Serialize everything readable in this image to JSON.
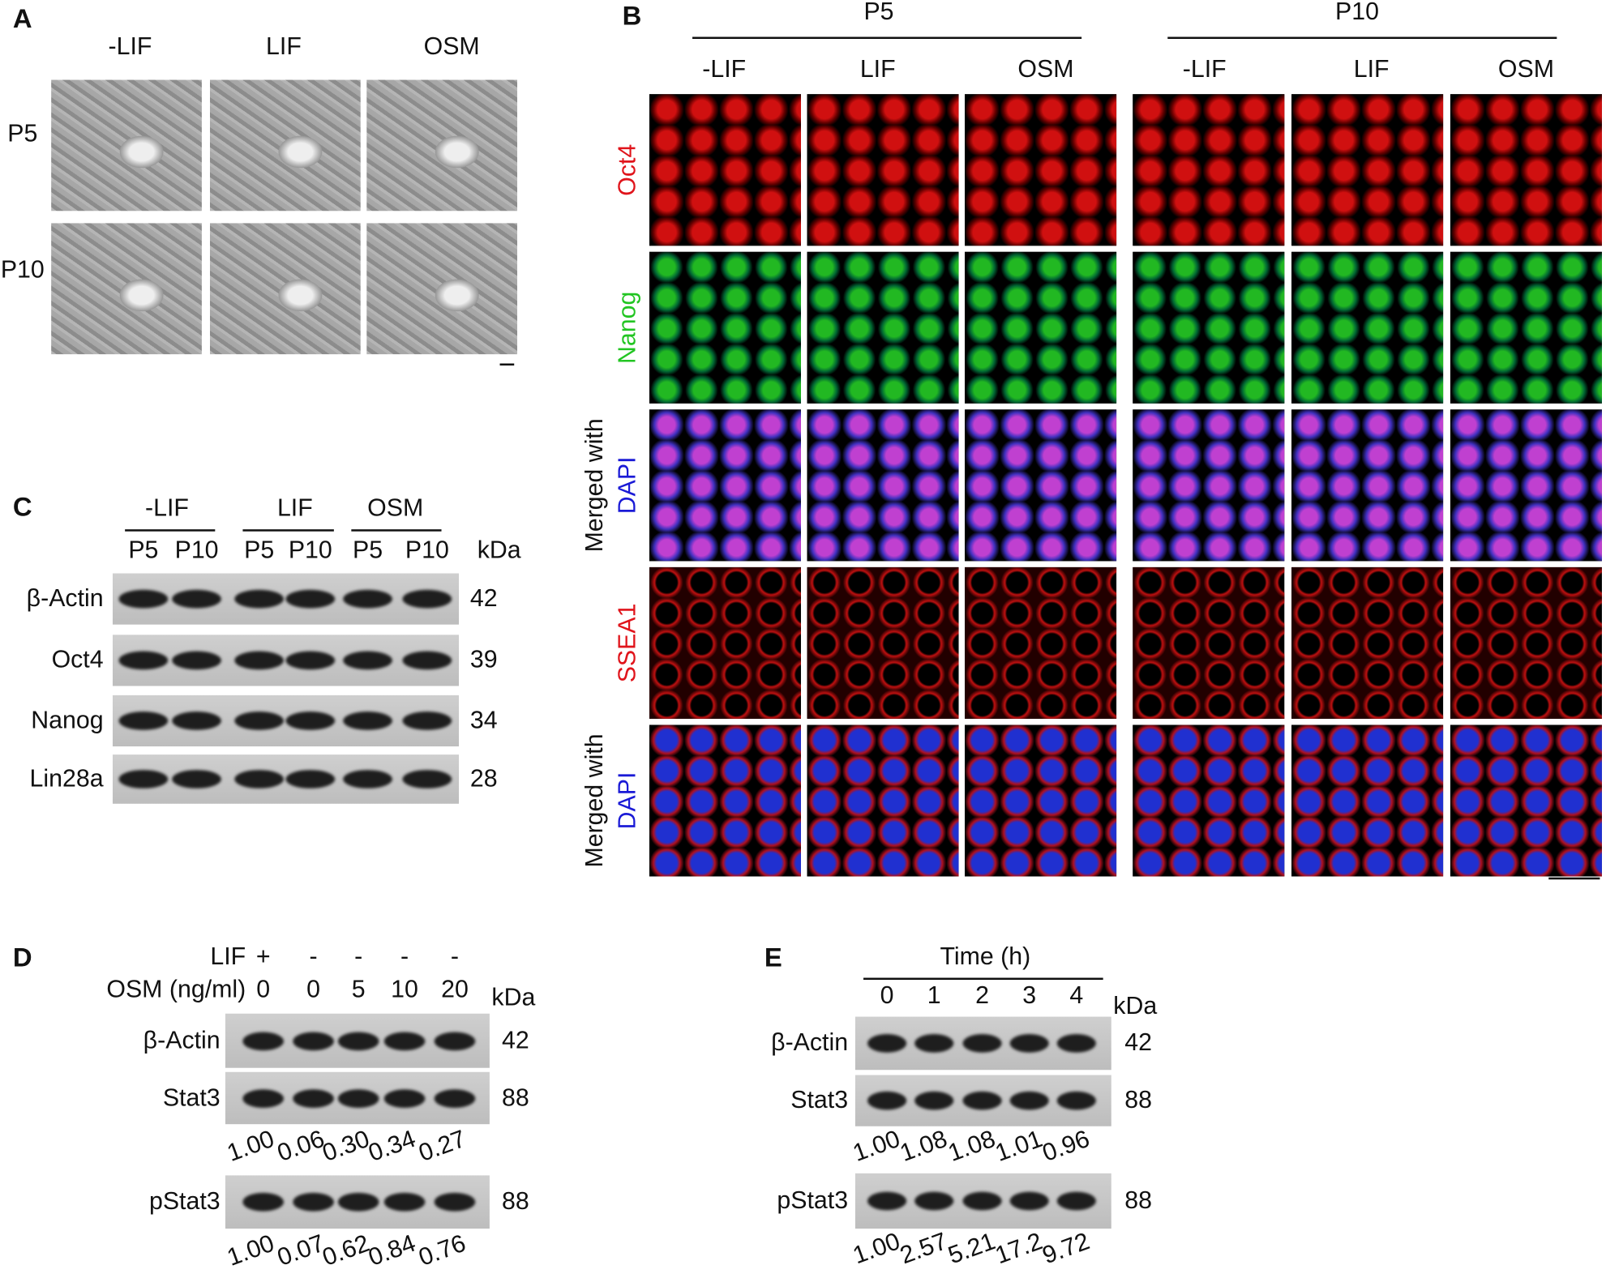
{
  "panel_a": {
    "label": "A",
    "columns": [
      "-LIF",
      "LIF",
      "OSM"
    ],
    "rows": [
      "P5",
      "P10"
    ]
  },
  "panel_b": {
    "label": "B",
    "groups": [
      {
        "title": "P5",
        "columns": [
          "-LIF",
          "LIF",
          "OSM"
        ]
      },
      {
        "title": "P10",
        "columns": [
          "-LIF",
          "LIF",
          "OSM"
        ]
      }
    ],
    "rows": [
      {
        "lines": [
          {
            "text": "Oct4",
            "color": "#e0141b"
          }
        ]
      },
      {
        "lines": [
          {
            "text": "Nanog",
            "color": "#22c522"
          }
        ]
      },
      {
        "lines": [
          {
            "text": "Merged with",
            "color": "#111111"
          },
          {
            "text": "DAPI",
            "color": "#1a1ad6"
          }
        ]
      },
      {
        "lines": [
          {
            "text": "SSEA1",
            "color": "#e0141b"
          }
        ]
      },
      {
        "lines": [
          {
            "text": "Merged with",
            "color": "#111111"
          },
          {
            "text": "DAPI",
            "color": "#1a1ad6"
          }
        ]
      }
    ]
  },
  "panel_c": {
    "label": "C",
    "groups": [
      "-LIF",
      "LIF",
      "OSM"
    ],
    "lanes": [
      "P5",
      "P10",
      "P5",
      "P10",
      "P5",
      "P10"
    ],
    "unit": "kDa",
    "bands": [
      {
        "name": "β-Actin",
        "kda": "42"
      },
      {
        "name": "Oct4",
        "kda": "39"
      },
      {
        "name": "Nanog",
        "kda": "34"
      },
      {
        "name": "Lin28a",
        "kda": "28"
      }
    ]
  },
  "panel_d": {
    "label": "D",
    "treatments": [
      {
        "name": "LIF",
        "values": [
          "+",
          "-",
          "-",
          "-",
          "-"
        ]
      },
      {
        "name": "OSM (ng/ml)",
        "values": [
          "0",
          "0",
          "5",
          "10",
          "20"
        ]
      }
    ],
    "unit": "kDa",
    "bands": [
      {
        "name": "β-Actin",
        "kda": "42"
      },
      {
        "name": "Stat3",
        "kda": "88",
        "quant": [
          "1.00",
          "0.06",
          "0.30",
          "0.34",
          "0.27"
        ]
      },
      {
        "name": "pStat3",
        "kda": "88",
        "quant": [
          "1.00",
          "0.07",
          "0.62",
          "0.84",
          "0.76"
        ]
      }
    ]
  },
  "panel_e": {
    "label": "E",
    "axis_title": "Time (h)",
    "lanes": [
      "0",
      "1",
      "2",
      "3",
      "4"
    ],
    "unit": "kDa",
    "bands": [
      {
        "name": "β-Actin",
        "kda": "42"
      },
      {
        "name": "Stat3",
        "kda": "88",
        "quant": [
          "1.00",
          "1.08",
          "1.08",
          "1.01",
          "0.96"
        ]
      },
      {
        "name": "pStat3",
        "kda": "88",
        "quant": [
          "1.00",
          "2.57",
          "5.21",
          "17.2",
          "9.72"
        ]
      }
    ]
  }
}
